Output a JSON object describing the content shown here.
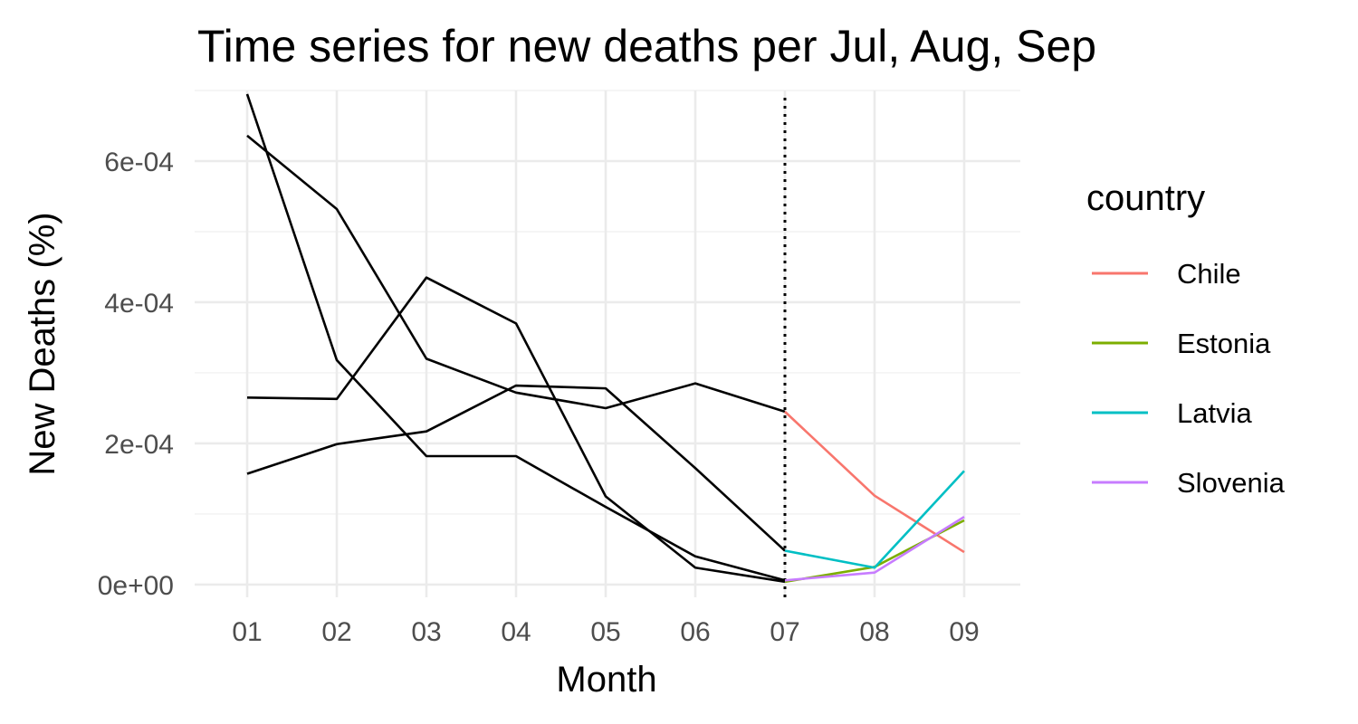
{
  "chart_data": {
    "type": "line",
    "title": "Time series for new deaths per Jul, Aug, Sep",
    "xlabel": "Month",
    "ylabel": "New Deaths (%)",
    "categories": [
      "01",
      "02",
      "03",
      "04",
      "05",
      "06",
      "07",
      "08",
      "09"
    ],
    "ylim": [
      -1.8e-05,
      0.0007
    ],
    "y_ticks": [
      {
        "value": 0,
        "label": "0e+00"
      },
      {
        "value": 0.0002,
        "label": "2e-04"
      },
      {
        "value": 0.0004,
        "label": "4e-04"
      },
      {
        "value": 0.0006,
        "label": "6e-04"
      }
    ],
    "y_minor_ticks": [
      0.0001,
      0.0003,
      0.0005,
      0.0007
    ],
    "grid": true,
    "reference_line": {
      "x": "07",
      "style": "dotted",
      "color": "#000000"
    },
    "history_color": "#000000",
    "history_series": [
      {
        "values": [
          0.000695,
          0.000318,
          0.000182,
          0.000182,
          0.00011,
          4e-05,
          6e-06
        ]
      },
      {
        "values": [
          0.000636,
          0.000532,
          0.00032,
          0.000272,
          0.00025,
          0.000285,
          0.000245
        ]
      },
      {
        "values": [
          0.000265,
          0.000263,
          0.000435,
          0.00037,
          0.000125,
          2.4e-05,
          4e-06
        ]
      },
      {
        "values": [
          0.000157,
          0.000199,
          0.000217,
          0.000282,
          0.000278,
          0.000165,
          4.8e-05
        ]
      }
    ],
    "legend": {
      "title": "country",
      "position": "right"
    },
    "series": [
      {
        "name": "Chile",
        "color": "#F8766D",
        "x": [
          "07",
          "08",
          "09"
        ],
        "values": [
          0.000245,
          0.000126,
          4.6e-05
        ]
      },
      {
        "name": "Estonia",
        "color": "#7CAE00",
        "x": [
          "07",
          "08",
          "09"
        ],
        "values": [
          4e-06,
          2.5e-05,
          9.1e-05
        ]
      },
      {
        "name": "Latvia",
        "color": "#00BFC4",
        "x": [
          "07",
          "08",
          "09"
        ],
        "values": [
          4.8e-05,
          2.4e-05,
          0.000161
        ]
      },
      {
        "name": "Slovenia",
        "color": "#C77CFF",
        "x": [
          "07",
          "08",
          "09"
        ],
        "values": [
          6e-06,
          1.7e-05,
          9.6e-05
        ]
      }
    ]
  }
}
